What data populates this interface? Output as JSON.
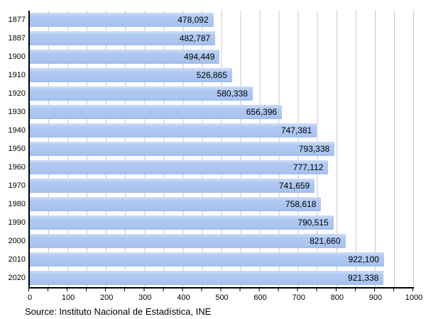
{
  "chart_data": {
    "type": "bar",
    "orientation": "horizontal",
    "title": "",
    "xlabel": "",
    "ylabel": "",
    "categories": [
      "1877",
      "1887",
      "1900",
      "1910",
      "1920",
      "1930",
      "1940",
      "1950",
      "1960",
      "1970",
      "1980",
      "1990",
      "2000",
      "2010",
      "2020"
    ],
    "values": [
      478092,
      482787,
      494449,
      526865,
      580338,
      656396,
      747381,
      793338,
      777112,
      741659,
      758618,
      790515,
      821660,
      922100,
      921338
    ],
    "labels": [
      "478,092",
      "482,787",
      "494,449",
      "526,865",
      "580,338",
      "656,396",
      "747,381",
      "793,338",
      "777,112",
      "741,659",
      "758,618",
      "790,515",
      "821,660",
      "922,100",
      "921,338"
    ],
    "xlim": [
      0,
      1000000
    ],
    "x_axis_unit": "thousands",
    "xticks": [
      "0",
      "100",
      "200",
      "300",
      "400",
      "500",
      "600",
      "700",
      "800",
      "900",
      "1000"
    ],
    "gridline_step_thousands": 50,
    "grid": "vertical-only",
    "legend": "none",
    "bar_color": "#aac4f0",
    "gridline_color": "#c9c9c9",
    "axis_color": "#000000",
    "source_note": "Source: Instituto Nacional de Estadística, INE"
  }
}
